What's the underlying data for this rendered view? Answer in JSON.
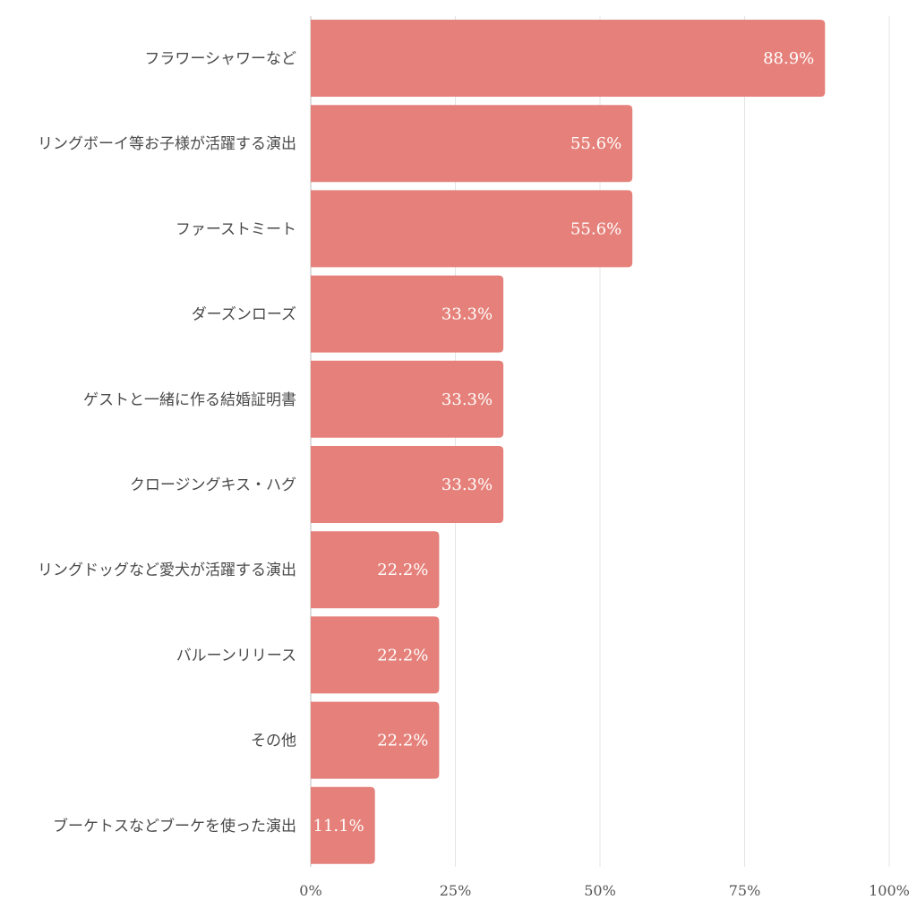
{
  "chart_data": {
    "type": "bar",
    "orientation": "horizontal",
    "title": "",
    "xlabel": "",
    "ylabel": "",
    "xlim": [
      0,
      100
    ],
    "x_ticks": [
      0,
      25,
      50,
      75,
      100
    ],
    "x_tick_labels": [
      "0%",
      "25%",
      "50%",
      "75%",
      "100%"
    ],
    "grid": true,
    "bar_color": "#e5817a",
    "value_label_color": "#ffffff",
    "categories": [
      "フラワーシャワーなど",
      "リングボーイ等お子様が活躍する演出",
      "ファーストミート",
      "ダーズンローズ",
      "ゲストと一緒に作る結婚証明書",
      "クロージングキス・ハグ",
      "リングドッグなど愛犬が活躍する演出",
      "バルーンリリース",
      "その他",
      "ブーケトスなどブーケを使った演出"
    ],
    "values": [
      88.9,
      55.6,
      55.6,
      33.3,
      33.3,
      33.3,
      22.2,
      22.2,
      22.2,
      11.1
    ],
    "value_labels": [
      "88.9%",
      "55.6%",
      "55.6%",
      "33.3%",
      "33.3%",
      "33.3%",
      "22.2%",
      "22.2%",
      "22.2%",
      "11.1%"
    ]
  }
}
